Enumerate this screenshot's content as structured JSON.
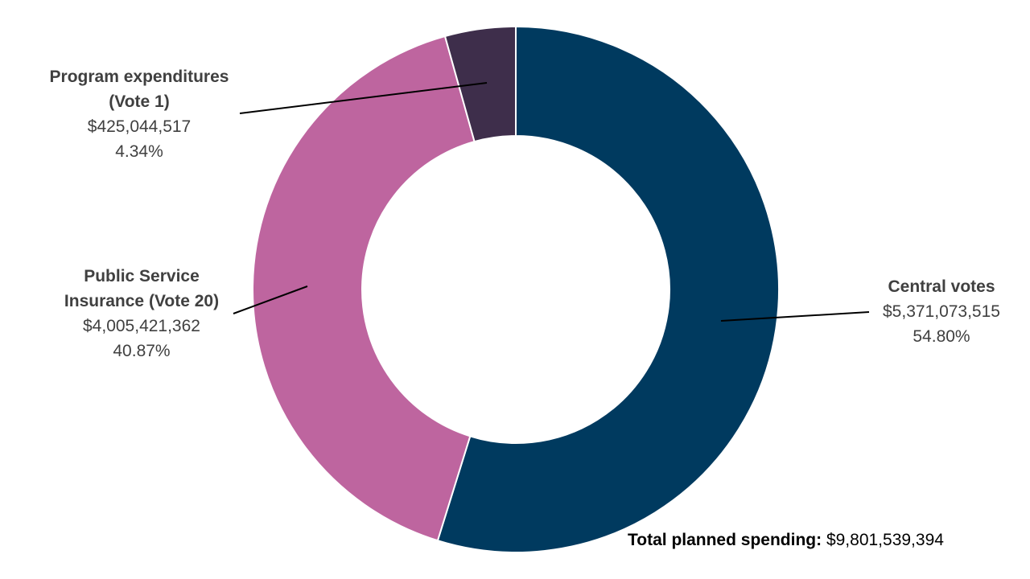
{
  "chart_data": {
    "type": "pie",
    "variant": "donut",
    "legend": "none",
    "slices": [
      {
        "name": "Central votes",
        "value": 5371073515,
        "value_label": "$5,371,073,515",
        "percent_label": "54.80%",
        "color": "#003A5F"
      },
      {
        "name": "Public Service Insurance (Vote 20)",
        "value": 4005421362,
        "value_label": "$4,005,421,362",
        "percent_label": "40.87%",
        "color": "#BE659F"
      },
      {
        "name": "Program expenditures (Vote 1)",
        "value": 425044517,
        "value_label": "$425,044,517",
        "percent_label": "4.34%",
        "color": "#3E2E4B"
      }
    ],
    "total": {
      "label": "Total planned spending:",
      "value": "$9,801,539,394"
    }
  }
}
